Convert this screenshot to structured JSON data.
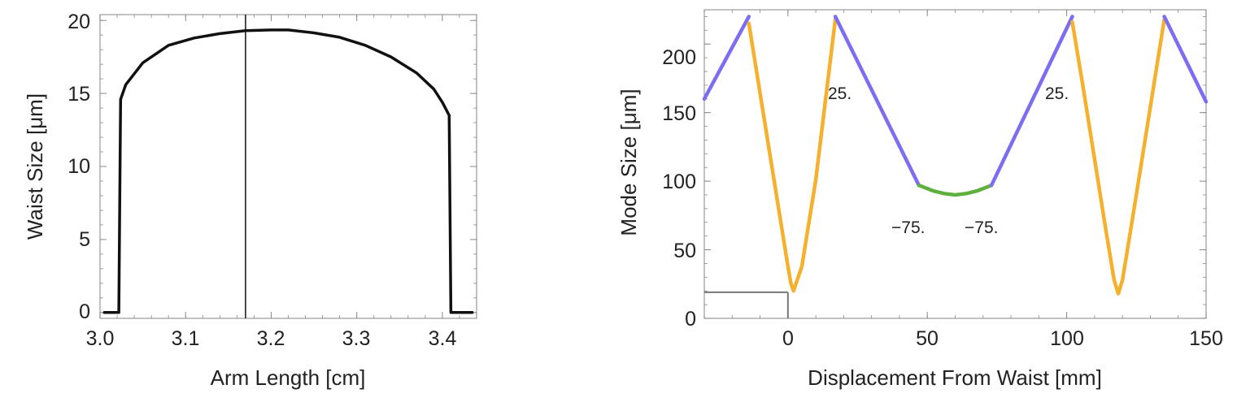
{
  "chart_data": [
    {
      "type": "line",
      "title": "",
      "xlabel": "Arm Length [cm]",
      "ylabel": "Waist Size [μm]",
      "xlim": [
        3.0,
        3.44
      ],
      "ylim": [
        -0.4,
        20.4
      ],
      "xticks": [
        {
          "value": 3.0,
          "label": "3.0"
        },
        {
          "value": 3.1,
          "label": "3.1"
        },
        {
          "value": 3.2,
          "label": "3.2"
        },
        {
          "value": 3.3,
          "label": "3.3"
        },
        {
          "value": 3.4,
          "label": "3.4"
        }
      ],
      "yticks": [
        {
          "value": 0,
          "label": "0"
        },
        {
          "value": 5,
          "label": "5"
        },
        {
          "value": 10,
          "label": "10"
        },
        {
          "value": 15,
          "label": "15"
        },
        {
          "value": 20,
          "label": "20"
        }
      ],
      "series": [
        {
          "name": "Waist Size",
          "color": "#111111",
          "x": [
            3.005,
            3.022,
            3.024,
            3.03,
            3.05,
            3.08,
            3.11,
            3.14,
            3.17,
            3.2,
            3.22,
            3.25,
            3.28,
            3.31,
            3.34,
            3.37,
            3.39,
            3.4,
            3.408,
            3.41,
            3.415,
            3.435
          ],
          "y": [
            0,
            0,
            14.6,
            15.6,
            17.1,
            18.3,
            18.8,
            19.1,
            19.3,
            19.35,
            19.35,
            19.15,
            18.85,
            18.3,
            17.5,
            16.4,
            15.3,
            14.4,
            13.5,
            0,
            0,
            0
          ]
        }
      ],
      "reference_lines": [
        {
          "orientation": "vertical",
          "x": 3.17,
          "color": "#111111"
        }
      ]
    },
    {
      "type": "line",
      "title": "",
      "xlabel": "Displacement From Waist [mm]",
      "ylabel": "Mode Size [μm]",
      "xlim": [
        -30,
        150
      ],
      "ylim": [
        0,
        225
      ],
      "xticks": [
        {
          "value": 0,
          "label": "0"
        },
        {
          "value": 50,
          "label": "50"
        },
        {
          "value": 100,
          "label": "100"
        },
        {
          "value": 150,
          "label": "150"
        }
      ],
      "yticks": [
        {
          "value": 0,
          "label": "0"
        },
        {
          "value": 50,
          "label": "50"
        },
        {
          "value": 100,
          "label": "100"
        },
        {
          "value": 150,
          "label": "150"
        },
        {
          "value": 200,
          "label": "200"
        }
      ],
      "series": [
        {
          "name": "blue-segment-1",
          "color": "#7b6ef2",
          "x": [
            -30,
            -14
          ],
          "y": [
            160,
            220
          ]
        },
        {
          "name": "orange-segment-1",
          "color": "#f5b02e",
          "x": [
            -14,
            -10,
            -5,
            0,
            1,
            2,
            5,
            10,
            17
          ],
          "y": [
            215,
            164,
            101,
            38,
            26,
            20,
            38,
            101,
            218
          ]
        },
        {
          "name": "blue-segment-2",
          "color": "#7b6ef2",
          "x": [
            17,
            47
          ],
          "y": [
            220,
            97
          ]
        },
        {
          "name": "green-segment",
          "color": "#5fb13f",
          "x": [
            47,
            52,
            56,
            60,
            64,
            68,
            73
          ],
          "y": [
            97,
            93,
            91,
            90,
            91,
            93,
            97
          ]
        },
        {
          "name": "blue-segment-3",
          "color": "#7b6ef2",
          "x": [
            73,
            102
          ],
          "y": [
            97,
            220
          ]
        },
        {
          "name": "orange-segment-2",
          "color": "#f5b02e",
          "x": [
            102,
            106,
            110,
            114,
            117,
            118.5,
            120,
            123,
            127,
            131,
            135
          ],
          "y": [
            216,
            167,
            116,
            65,
            28,
            18,
            28,
            65,
            116,
            167,
            218
          ]
        },
        {
          "name": "blue-segment-4",
          "color": "#7b6ef2",
          "x": [
            135,
            150
          ],
          "y": [
            220,
            158
          ]
        }
      ],
      "reference_lines": [
        {
          "orientation": "horizontal",
          "y": 19,
          "x_from": -30,
          "x_to": 0,
          "color": "#777777"
        },
        {
          "orientation": "vertical",
          "x": 0,
          "y_from": 0,
          "y_to": 19,
          "color": "#777777"
        }
      ],
      "annotations": [
        {
          "text": "25.",
          "x": 17,
          "y": 166
        },
        {
          "text": "25.",
          "x": 102,
          "y": 166
        },
        {
          "text": "−75.",
          "x": 40,
          "y": 66
        },
        {
          "text": "−75.",
          "x": 73,
          "y": 66
        }
      ]
    }
  ]
}
